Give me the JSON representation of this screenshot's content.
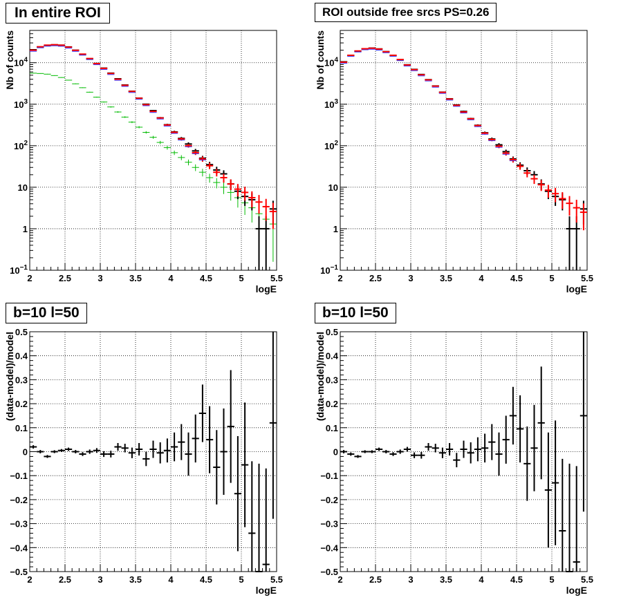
{
  "colors": {
    "data": "#000000",
    "model": "#ff0000",
    "model_alt": "#3333ff",
    "component": "#00bb00",
    "grid": "#000000"
  },
  "chart_data": [
    {
      "type": "scatter",
      "title": "In entire ROI",
      "xlabel": "logE",
      "ylabel": "Nb of counts",
      "xlim": [
        2,
        5.5
      ],
      "ylim": [
        0.1,
        60000
      ],
      "yscale": "log",
      "xticks": [
        "2",
        "2.5",
        "3",
        "3.5",
        "4",
        "4.5",
        "5",
        "5.5"
      ],
      "yticks": [
        "10^-1",
        "1",
        "10",
        "10^2",
        "10^3",
        "10^4"
      ],
      "grid": true,
      "bin_width": 0.1,
      "x": [
        2.05,
        2.15,
        2.25,
        2.35,
        2.45,
        2.55,
        2.65,
        2.75,
        2.85,
        2.95,
        3.05,
        3.15,
        3.25,
        3.35,
        3.45,
        3.55,
        3.65,
        3.75,
        3.85,
        3.95,
        4.05,
        4.15,
        4.25,
        4.35,
        4.45,
        4.55,
        4.65,
        4.75,
        4.85,
        4.95,
        5.05,
        5.15,
        5.25,
        5.35,
        5.45
      ],
      "series": [
        {
          "role": "data",
          "color": "#000000",
          "values": [
            20500,
            24000,
            26000,
            27000,
            26500,
            24000,
            20000,
            16000,
            12500,
            9600,
            7400,
            5600,
            4100,
            2900,
            2050,
            1400,
            1000,
            700,
            470,
            320,
            215,
            150,
            110,
            75,
            50,
            35,
            26,
            21,
            12,
            8,
            6,
            5,
            1,
            1,
            3
          ]
        },
        {
          "role": "model",
          "color": "#ff0000",
          "values": [
            20000,
            24200,
            26500,
            27100,
            26400,
            23700,
            19900,
            16100,
            12600,
            9500,
            7300,
            5500,
            4000,
            2850,
            2030,
            1390,
            975,
            670,
            465,
            315,
            210,
            145,
            100,
            68,
            48,
            33,
            23,
            17,
            12,
            9,
            7.5,
            5.6,
            4.4,
            3.4,
            2.6
          ]
        },
        {
          "role": "component",
          "color": "#00bb00",
          "values": [
            5600,
            5500,
            5300,
            4900,
            4400,
            3800,
            3100,
            2500,
            1950,
            1480,
            1130,
            860,
            650,
            490,
            370,
            280,
            210,
            160,
            120,
            90,
            68,
            52,
            40,
            30,
            23,
            17,
            13,
            10,
            7.5,
            5.6,
            4.2,
            3.2,
            2.3,
            1.7,
            1.3
          ]
        }
      ]
    },
    {
      "type": "scatter",
      "title": "ROI outside free srcs PS=0.26",
      "xlabel": "logE",
      "ylabel": "Nb of counts",
      "xlim": [
        2,
        5.5
      ],
      "ylim": [
        0.1,
        60000
      ],
      "yscale": "log",
      "xticks": [
        "2",
        "2.5",
        "3",
        "3.5",
        "4",
        "4.5",
        "5",
        "5.5"
      ],
      "yticks": [
        "10^-1",
        "1",
        "10",
        "10^2",
        "10^3",
        "10^4"
      ],
      "grid": true,
      "bin_width": 0.1,
      "x": [
        2.05,
        2.15,
        2.25,
        2.35,
        2.45,
        2.55,
        2.65,
        2.75,
        2.85,
        2.95,
        3.05,
        3.15,
        3.25,
        3.35,
        3.45,
        3.55,
        3.65,
        3.75,
        3.85,
        3.95,
        4.05,
        4.15,
        4.25,
        4.35,
        4.45,
        4.55,
        4.65,
        4.75,
        4.85,
        4.95,
        5.05,
        5.15,
        5.25,
        5.35,
        5.45
      ],
      "series": [
        {
          "role": "data",
          "color": "#000000",
          "values": [
            10500,
            15000,
            19000,
            21500,
            22500,
            21500,
            18500,
            15000,
            11800,
            8900,
            6900,
            5200,
            3900,
            2750,
            1950,
            1350,
            960,
            670,
            450,
            310,
            205,
            145,
            105,
            72,
            48,
            34,
            25,
            20,
            12,
            8,
            6,
            5,
            1,
            1,
            3
          ]
        },
        {
          "role": "model",
          "color": "#ff0000",
          "values": [
            10300,
            15100,
            19200,
            21700,
            22300,
            21300,
            18400,
            15100,
            11900,
            8800,
            6800,
            5100,
            3850,
            2720,
            1930,
            1330,
            940,
            650,
            445,
            305,
            200,
            140,
            97,
            66,
            46,
            32,
            22,
            16,
            11.5,
            8.5,
            7,
            5.3,
            4.1,
            3.2,
            2.5
          ]
        }
      ]
    },
    {
      "type": "scatter",
      "title": "b=10 l=50",
      "xlabel": "logE",
      "ylabel": "(data-model)/model",
      "xlim": [
        2,
        5.5
      ],
      "ylim": [
        -0.5,
        0.5
      ],
      "xticks": [
        "2",
        "2.5",
        "3",
        "3.5",
        "4",
        "4.5",
        "5",
        "5.5"
      ],
      "yticks": [
        "−0.5",
        "−0.4",
        "−0.3",
        "−0.2",
        "−0.1",
        "0",
        "0.1",
        "0.2",
        "0.3",
        "0.4",
        "0.5"
      ],
      "grid": true,
      "bin_width": 0.1,
      "x": [
        2.05,
        2.15,
        2.25,
        2.35,
        2.45,
        2.55,
        2.65,
        2.75,
        2.85,
        2.95,
        3.05,
        3.15,
        3.25,
        3.35,
        3.45,
        3.55,
        3.65,
        3.75,
        3.85,
        3.95,
        4.05,
        4.15,
        4.25,
        4.35,
        4.45,
        4.55,
        4.65,
        4.75,
        4.85,
        4.95,
        5.05,
        5.15,
        5.25,
        5.35,
        5.45
      ],
      "values": [
        0.02,
        0.0,
        -0.02,
        0.0,
        0.005,
        0.01,
        0.0,
        -0.01,
        0.0,
        0.005,
        -0.01,
        -0.01,
        0.02,
        0.015,
        -0.005,
        0.01,
        -0.03,
        0.01,
        -0.005,
        0.005,
        0.02,
        0.04,
        -0.01,
        0.055,
        0.16,
        0.05,
        -0.065,
        0.0,
        0.105,
        -0.175,
        -0.055,
        -0.34,
        -0.5,
        -0.47,
        0.12
      ],
      "errors": [
        0.007,
        0.007,
        0.006,
        0.006,
        0.006,
        0.007,
        0.007,
        0.008,
        0.009,
        0.01,
        0.012,
        0.014,
        0.016,
        0.018,
        0.022,
        0.026,
        0.03,
        0.036,
        0.044,
        0.05,
        0.06,
        0.075,
        0.09,
        0.1,
        0.12,
        0.14,
        0.155,
        0.18,
        0.235,
        0.24,
        0.26,
        0.3,
        0.45,
        0.4,
        0.4
      ]
    },
    {
      "type": "scatter",
      "title": "b=10 l=50",
      "xlabel": "logE",
      "ylabel": "(data-model)/model",
      "xlim": [
        2,
        5.5
      ],
      "ylim": [
        -0.5,
        0.5
      ],
      "xticks": [
        "2",
        "2.5",
        "3",
        "3.5",
        "4",
        "4.5",
        "5",
        "5.5"
      ],
      "yticks": [
        "−0.5",
        "−0.4",
        "−0.3",
        "−0.2",
        "−0.1",
        "0",
        "0.1",
        "0.2",
        "0.3",
        "0.4",
        "0.5"
      ],
      "grid": true,
      "bin_width": 0.1,
      "x": [
        2.05,
        2.15,
        2.25,
        2.35,
        2.45,
        2.55,
        2.65,
        2.75,
        2.85,
        2.95,
        3.05,
        3.15,
        3.25,
        3.35,
        3.45,
        3.55,
        3.65,
        3.75,
        3.85,
        3.95,
        4.05,
        4.15,
        4.25,
        4.35,
        4.45,
        4.55,
        4.65,
        4.75,
        4.85,
        4.95,
        5.05,
        5.15,
        5.25,
        5.35,
        5.45
      ],
      "values": [
        0.0,
        -0.01,
        -0.02,
        0.0,
        0.0,
        0.01,
        0.0,
        -0.01,
        0.0,
        0.01,
        -0.015,
        -0.015,
        0.02,
        0.015,
        -0.005,
        0.01,
        -0.035,
        0.01,
        -0.005,
        0.01,
        0.015,
        0.04,
        -0.01,
        0.05,
        0.15,
        0.095,
        -0.05,
        0.015,
        0.12,
        -0.16,
        -0.13,
        -0.33,
        -0.5,
        -0.46,
        0.15
      ],
      "errors": [
        0.007,
        0.007,
        0.006,
        0.006,
        0.006,
        0.007,
        0.007,
        0.008,
        0.009,
        0.01,
        0.012,
        0.014,
        0.016,
        0.018,
        0.022,
        0.026,
        0.03,
        0.036,
        0.044,
        0.05,
        0.06,
        0.075,
        0.09,
        0.1,
        0.12,
        0.14,
        0.155,
        0.18,
        0.235,
        0.24,
        0.26,
        0.3,
        0.45,
        0.4,
        0.4
      ]
    }
  ]
}
